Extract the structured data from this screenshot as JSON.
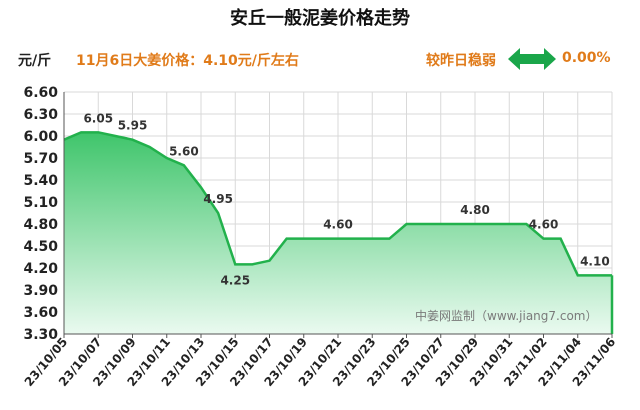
{
  "header": {
    "title": "安丘一般泥姜价格走势",
    "unit": "元/斤",
    "price_note": "11月6日大姜价格：4.10元/斤左右",
    "trend_label": "较昨日稳弱",
    "trend_value": "0.00%"
  },
  "watermark": "中姜网监制（www.jiang7.com）",
  "colors": {
    "accent_orange": "#e07b1a",
    "line": "#22b14c",
    "fill_top": "#3fc56b",
    "fill_bottom": "#eafaf0",
    "arrow": "#1aa64a"
  },
  "icons": {
    "trend": "double-arrow-icon"
  },
  "chart_data": {
    "type": "area",
    "title": "安丘一般泥姜价格走势",
    "ylabel": "元/斤",
    "ylim": [
      3.3,
      6.6
    ],
    "yticks": [
      3.3,
      3.6,
      3.9,
      4.2,
      4.5,
      4.8,
      5.1,
      5.4,
      5.7,
      6.0,
      6.3,
      6.6
    ],
    "xtick_labels": [
      "23/10/05",
      "23/10/07",
      "23/10/09",
      "23/10/11",
      "23/10/13",
      "23/10/15",
      "23/10/17",
      "23/10/19",
      "23/10/21",
      "23/10/23",
      "23/10/25",
      "23/10/27",
      "23/10/29",
      "23/10/31",
      "23/11/02",
      "23/11/04",
      "23/11/06"
    ],
    "x": [
      "23/10/05",
      "23/10/06",
      "23/10/07",
      "23/10/08",
      "23/10/09",
      "23/10/10",
      "23/10/11",
      "23/10/12",
      "23/10/13",
      "23/10/14",
      "23/10/15",
      "23/10/16",
      "23/10/17",
      "23/10/18",
      "23/10/19",
      "23/10/20",
      "23/10/21",
      "23/10/22",
      "23/10/23",
      "23/10/24",
      "23/10/25",
      "23/10/26",
      "23/10/27",
      "23/10/28",
      "23/10/29",
      "23/10/30",
      "23/10/31",
      "23/11/01",
      "23/11/02",
      "23/11/03",
      "23/11/04",
      "23/11/05",
      "23/11/06"
    ],
    "values": [
      5.95,
      6.05,
      6.05,
      6.0,
      5.95,
      5.85,
      5.7,
      5.6,
      5.3,
      4.95,
      4.25,
      4.25,
      4.3,
      4.6,
      4.6,
      4.6,
      4.6,
      4.6,
      4.6,
      4.6,
      4.8,
      4.8,
      4.8,
      4.8,
      4.8,
      4.8,
      4.8,
      4.8,
      4.6,
      4.6,
      4.1,
      4.1,
      4.1
    ],
    "data_labels": [
      {
        "x": "23/10/07",
        "text": "6.05"
      },
      {
        "x": "23/10/09",
        "text": "5.95"
      },
      {
        "x": "23/10/12",
        "text": "5.60"
      },
      {
        "x": "23/10/14",
        "text": "4.95"
      },
      {
        "x": "23/10/15",
        "text": "4.25"
      },
      {
        "x": "23/10/21",
        "text": "4.60"
      },
      {
        "x": "23/10/29",
        "text": "4.80"
      },
      {
        "x": "23/11/02",
        "text": "4.60"
      },
      {
        "x": "23/11/05",
        "text": "4.10"
      }
    ],
    "grid": true
  }
}
